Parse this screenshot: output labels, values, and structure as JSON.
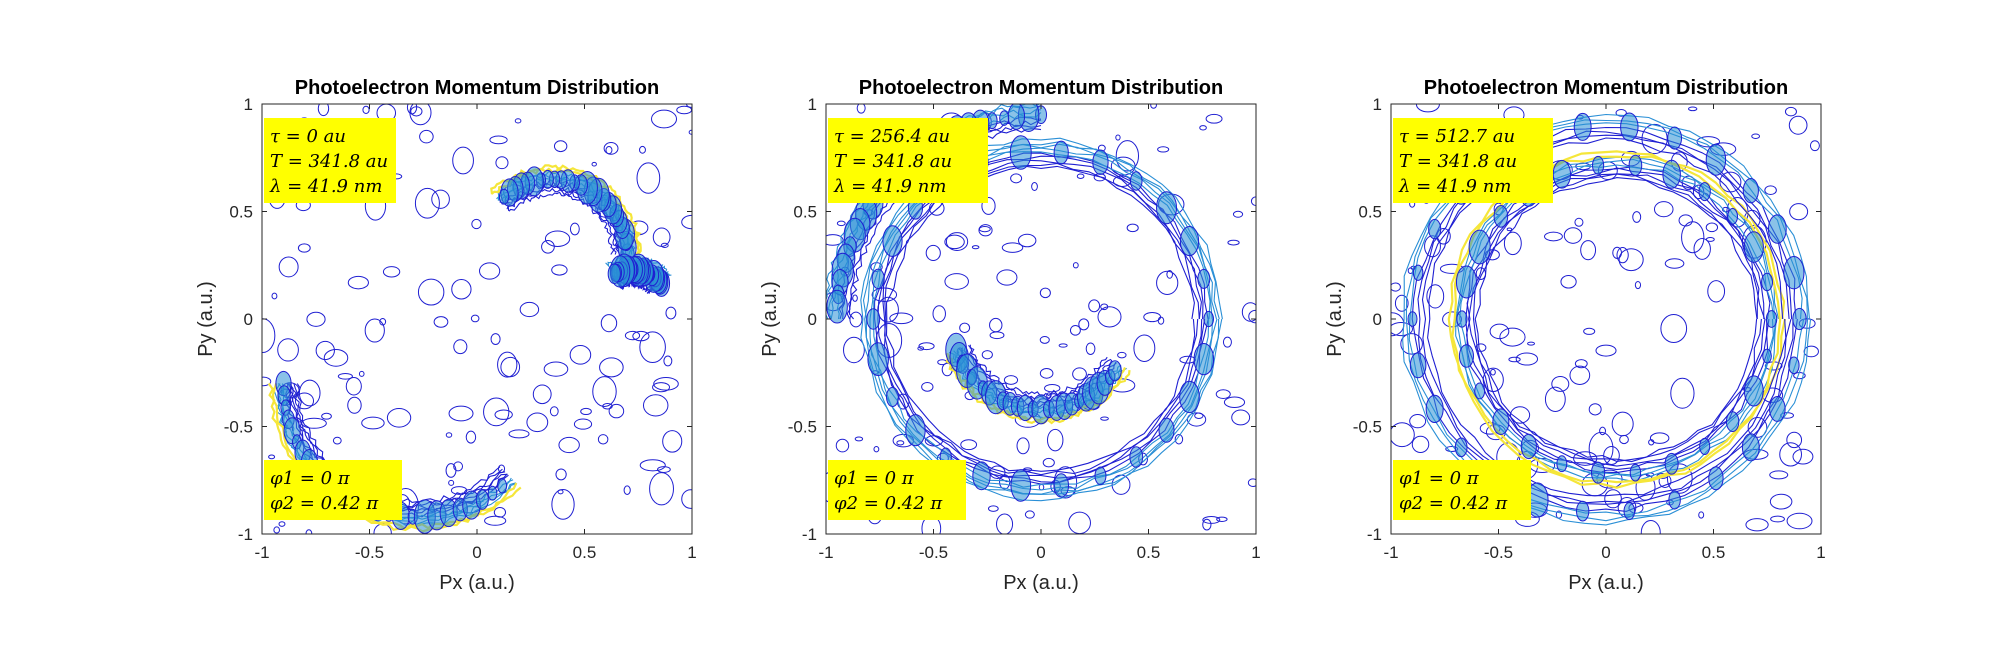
{
  "colors": {
    "annotation_bg": "#ffff00",
    "contour_low": "#1f1fd2",
    "contour_mid": "#2a8fd6",
    "contour_high": "#f5e63a",
    "axes": "#262626"
  },
  "chart_data": [
    {
      "type": "contour",
      "title": "Photoelectron Momentum Distribution",
      "xlabel": "Px (a.u.)",
      "ylabel": "Py (a.u.)",
      "xlim": [
        -1,
        1
      ],
      "ylim": [
        -1,
        1
      ],
      "xticks": [
        "-1",
        "-0.5",
        "0",
        "0.5",
        "1"
      ],
      "yticks": [
        "-1",
        "-0.5",
        "0",
        "0.5",
        "1"
      ],
      "grid": false,
      "annotation_top": [
        "τ = 0 au",
        "T = 341.8 au",
        "λ = 41.9 nm"
      ],
      "annotation_bottom": [
        "φ1 = 0 π",
        "φ2 = 0.42 π"
      ],
      "lobes": [
        {
          "cx": -0.28,
          "cy": -0.3,
          "radius": 0.62,
          "angle_start": 180,
          "angle_end": 315,
          "intensity": 1.0
        },
        {
          "cx": 0.35,
          "cy": 0.3,
          "radius": 0.35,
          "angle_start": 0,
          "angle_end": 135,
          "intensity": 0.8
        },
        {
          "cx": 0.72,
          "cy": 0.05,
          "radius": 0.18,
          "angle_start": 40,
          "angle_end": 120,
          "intensity": 0.6
        }
      ]
    },
    {
      "type": "contour",
      "title": "Photoelectron Momentum Distribution",
      "xlabel": "Px (a.u.)",
      "ylabel": "Py (a.u.)",
      "xlim": [
        -1,
        1
      ],
      "ylim": [
        -1,
        1
      ],
      "xticks": [
        "-1",
        "-0.5",
        "0",
        "0.5",
        "1"
      ],
      "yticks": [
        "-1",
        "-0.5",
        "0",
        "0.5",
        "1"
      ],
      "grid": false,
      "annotation_top": [
        "τ = 256.4 au",
        "T = 341.8 au",
        "λ = 41.9 nm"
      ],
      "annotation_bottom": [
        "φ1 = 0 π",
        "φ2 = 0.42 π"
      ],
      "lobes": [
        {
          "cx": 0.0,
          "cy": 0.0,
          "radius": 0.78,
          "angle_start": 0,
          "angle_end": 360,
          "intensity": 0.7
        },
        {
          "cx": 0.0,
          "cy": 0.0,
          "radius": 0.42,
          "angle_start": 200,
          "angle_end": 330,
          "intensity": 0.8
        },
        {
          "cx": 0.0,
          "cy": 0.0,
          "radius": 0.95,
          "angle_start": 90,
          "angle_end": 180,
          "intensity": 0.5
        }
      ]
    },
    {
      "type": "contour",
      "title": "Photoelectron Momentum Distribution",
      "xlabel": "Px (a.u.)",
      "ylabel": "Py (a.u.)",
      "xlim": [
        -1,
        1
      ],
      "ylim": [
        -1,
        1
      ],
      "xticks": [
        "-1",
        "-0.5",
        "0",
        "0.5",
        "1"
      ],
      "yticks": [
        "-1",
        "-0.5",
        "0",
        "0.5",
        "1"
      ],
      "grid": false,
      "annotation_top": [
        "τ = 512.7 au",
        "T = 341.8 au",
        "λ = 41.9 nm"
      ],
      "annotation_bottom": [
        "φ1 = 0 π",
        "φ2 = 0.42 π"
      ],
      "lobes": [
        {
          "cx": 0.05,
          "cy": 0.0,
          "radius": 0.72,
          "angle_start": 0,
          "angle_end": 360,
          "intensity": 0.8
        },
        {
          "cx": 0.0,
          "cy": 0.0,
          "radius": 0.9,
          "angle_start": 0,
          "angle_end": 360,
          "intensity": 0.4
        }
      ]
    }
  ]
}
